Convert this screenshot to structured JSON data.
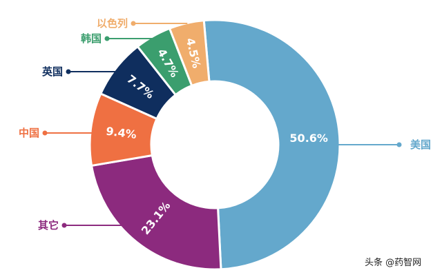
{
  "chart_data": {
    "type": "pie",
    "variant": "donut",
    "title": "",
    "slices": [
      {
        "name": "美国",
        "value": 50.6,
        "label": "50.6%",
        "color": "#64A8CC"
      },
      {
        "name": "其它",
        "value": 23.1,
        "label": "23.1%",
        "color": "#8C2A7E"
      },
      {
        "name": "中国",
        "value": 9.4,
        "label": "9.4%",
        "color": "#EF7042"
      },
      {
        "name": "英国",
        "value": 7.7,
        "label": "7.7%",
        "color": "#0F2E5E"
      },
      {
        "name": "韩国",
        "value": 4.7,
        "label": "4.7%",
        "color": "#3B9E6E"
      },
      {
        "name": "以色列",
        "value": 4.5,
        "label": "4.5%",
        "color": "#F0AD6C"
      }
    ]
  },
  "watermark": {
    "text": "头条 @药智网"
  }
}
